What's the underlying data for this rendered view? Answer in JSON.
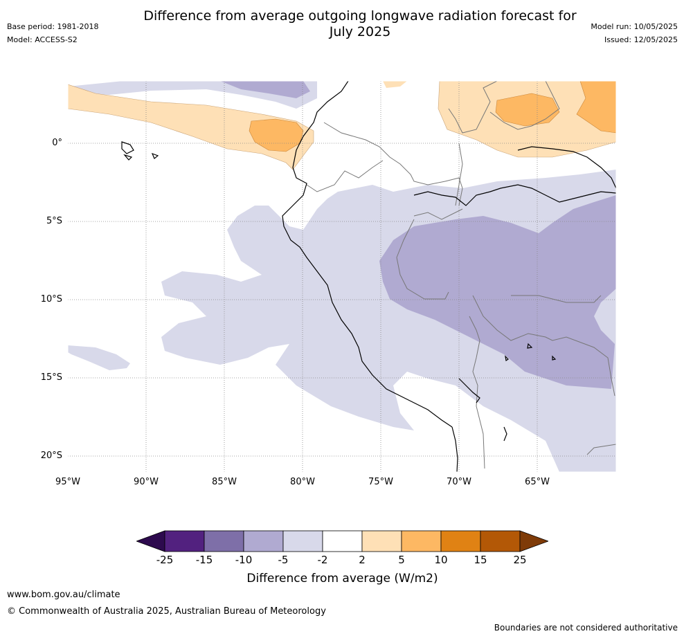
{
  "header": {
    "title_line1": "Difference from average outgoing longwave radiation forecast for",
    "title_line2": "July 2025",
    "base_period": "Base period: 1981-2018",
    "model": "Model: ACCESS-S2",
    "model_run": "Model run: 10/05/2025",
    "issued": "Issued: 12/05/2025"
  },
  "map": {
    "lat_labels": [
      "0°",
      "5°S",
      "10°S",
      "15°S",
      "20°S"
    ],
    "lon_labels": [
      "95°W",
      "90°W",
      "85°W",
      "80°W",
      "75°W",
      "70°W",
      "65°W"
    ],
    "lat_range_deg": [
      4,
      -21
    ],
    "lon_range_deg": [
      -95,
      -60
    ]
  },
  "legend": {
    "title": "Difference from average (W/m2)",
    "ticks": [
      "-25",
      "-15",
      "-10",
      "-5",
      "-2",
      "2",
      "5",
      "10",
      "15",
      "25"
    ],
    "colors": {
      "below_-25": "#2d0a4e",
      "-25_-15": "#52217f",
      "-15_-10": "#7e6fa8",
      "-10_-5": "#b0aad1",
      "-5_-2": "#d8d9ea",
      "-2_2": "#ffffff",
      "2_5": "#fee0b6",
      "5_10": "#fdb863",
      "10_15": "#e08214",
      "15_25": "#b35806",
      "above_25": "#7f3b08"
    }
  },
  "footer": {
    "url": "www.bom.gov.au/climate",
    "copyright": "© Commonwealth of Australia 2025, Australian Bureau of Meteorology",
    "note": "Boundaries are not considered authoritative"
  }
}
